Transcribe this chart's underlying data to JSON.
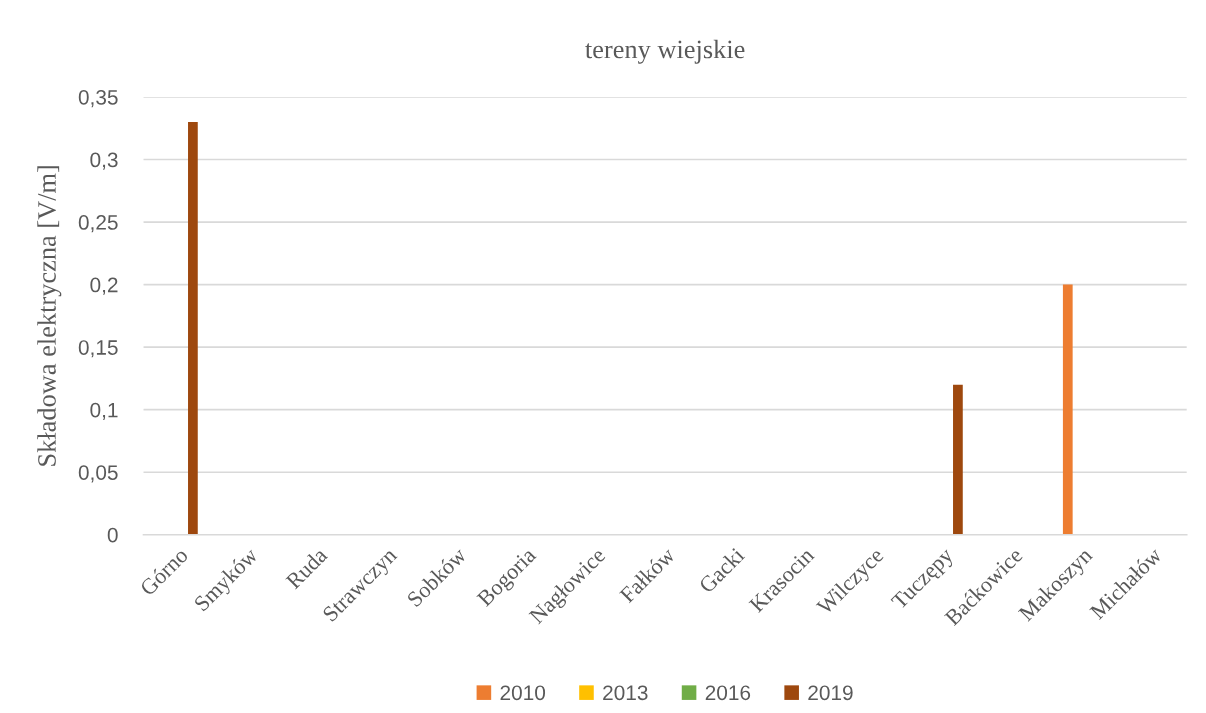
{
  "chart_data": {
    "type": "bar",
    "title": "tereny wiejskie",
    "ylabel": "Składowa elektryczna [V/m]",
    "categories": [
      "Górno",
      "Smyków",
      "Ruda",
      "Strawczyn",
      "Sobków",
      "Bogoria",
      "Nagłowice",
      "Fałków",
      "Gacki",
      "Krasocin",
      "Wilczyce",
      "Tuczępy",
      "Baćkowice",
      "Makoszyn",
      "Michałów"
    ],
    "series": [
      {
        "name": "2010",
        "color": "#ed7d31",
        "values": [
          null,
          null,
          null,
          null,
          null,
          null,
          null,
          null,
          null,
          null,
          null,
          null,
          null,
          0.2,
          null
        ]
      },
      {
        "name": "2013",
        "color": "#ffc000",
        "values": [
          null,
          null,
          null,
          null,
          null,
          null,
          null,
          null,
          null,
          null,
          null,
          null,
          null,
          null,
          null
        ]
      },
      {
        "name": "2016",
        "color": "#70ad47",
        "values": [
          null,
          null,
          null,
          null,
          null,
          null,
          null,
          null,
          null,
          null,
          null,
          null,
          null,
          null,
          null
        ]
      },
      {
        "name": "2019",
        "color": "#9e480e",
        "values": [
          0.33,
          null,
          null,
          null,
          null,
          null,
          null,
          null,
          null,
          null,
          null,
          0.12,
          null,
          null,
          null
        ]
      }
    ],
    "ylim": [
      0,
      0.35
    ],
    "yticks": [
      0,
      {
        "value": 0.05,
        "label": "0,05"
      },
      {
        "value": 0.1,
        "label": "0,1"
      },
      {
        "value": 0.15,
        "label": "0,15"
      },
      {
        "value": 0.2,
        "label": "0,2"
      },
      {
        "value": 0.25,
        "label": "0,25"
      },
      {
        "value": 0.3,
        "label": "0,3"
      },
      {
        "value": 0.35,
        "label": "0,35"
      }
    ],
    "grid": "y",
    "legend": "bottom"
  }
}
